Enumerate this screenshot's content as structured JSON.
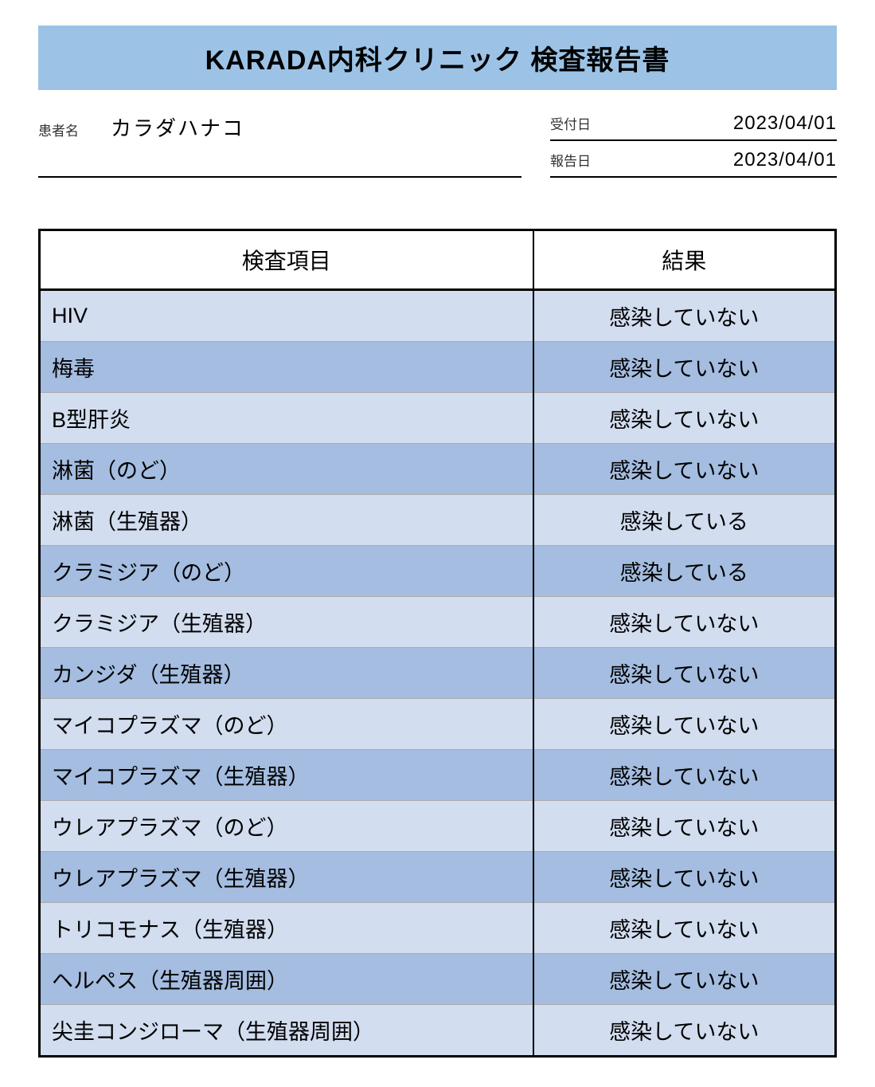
{
  "title": "KARADA内科クリニック 検査報告書",
  "patient": {
    "label": "患者名",
    "name": "カラダハナコ"
  },
  "dates": {
    "reception": {
      "label": "受付日",
      "value": "2023/04/01"
    },
    "report": {
      "label": "報告日",
      "value": "2023/04/01"
    }
  },
  "table": {
    "columns": {
      "item": "検査項目",
      "result": "結果"
    },
    "row_colors": {
      "light": "#d2ddef",
      "dark": "#a4bde0"
    },
    "rows": [
      {
        "item": "HIV",
        "result": "感染していない"
      },
      {
        "item": "梅毒",
        "result": "感染していない"
      },
      {
        "item": "B型肝炎",
        "result": "感染していない"
      },
      {
        "item": "淋菌（のど）",
        "result": "感染していない"
      },
      {
        "item": "淋菌（生殖器）",
        "result": "感染している"
      },
      {
        "item": "クラミジア（のど）",
        "result": "感染している"
      },
      {
        "item": "クラミジア（生殖器）",
        "result": "感染していない"
      },
      {
        "item": "カンジダ（生殖器）",
        "result": "感染していない"
      },
      {
        "item": "マイコプラズマ（のど）",
        "result": "感染していない"
      },
      {
        "item": "マイコプラズマ（生殖器）",
        "result": "感染していない"
      },
      {
        "item": "ウレアプラズマ（のど）",
        "result": "感染していない"
      },
      {
        "item": "ウレアプラズマ（生殖器）",
        "result": "感染していない"
      },
      {
        "item": "トリコモナス（生殖器）",
        "result": "感染していない"
      },
      {
        "item": "ヘルペス（生殖器周囲）",
        "result": "感染していない"
      },
      {
        "item": "尖圭コンジローマ（生殖器周囲）",
        "result": "感染していない"
      }
    ]
  },
  "styling": {
    "title_bg": "#9cc3e6",
    "border_color": "#000000",
    "text_color": "#000000",
    "title_fontsize": 34,
    "header_fontsize": 28,
    "cell_fontsize": 27,
    "meta_label_fontsize": 17,
    "meta_value_fontsize": 26
  }
}
